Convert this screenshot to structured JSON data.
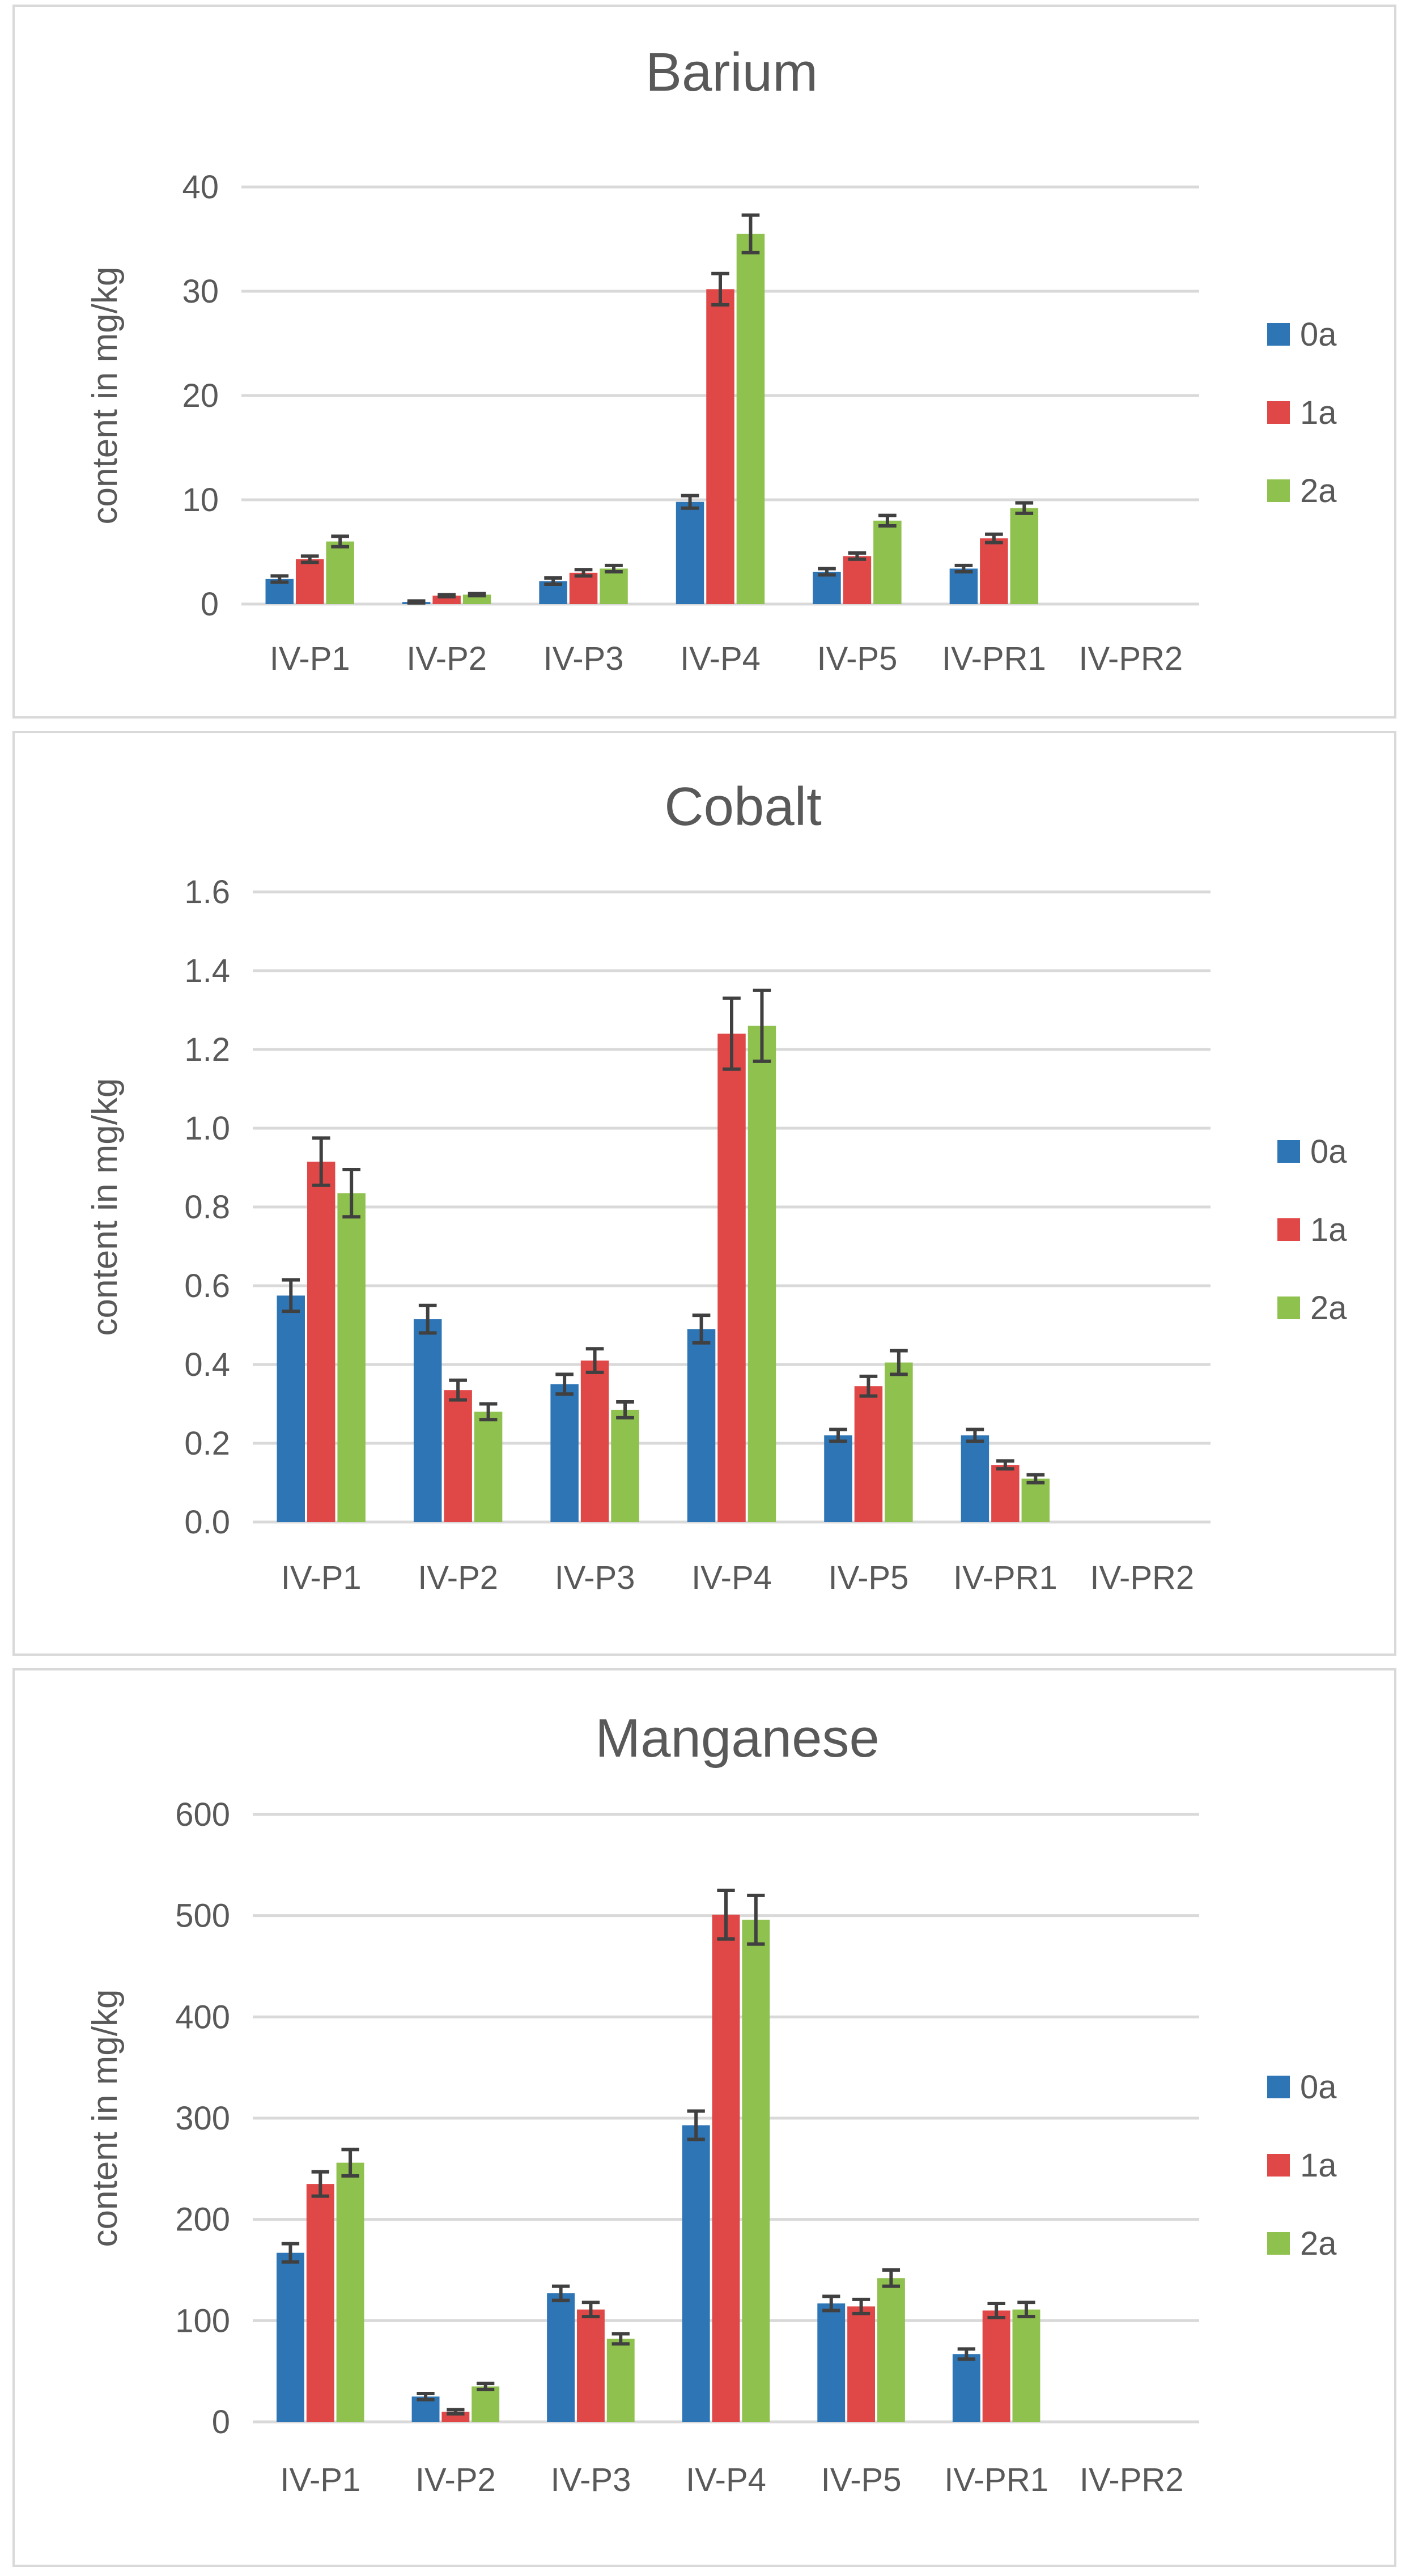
{
  "chart_data": [
    {
      "type": "bar",
      "title": "Barium",
      "xlabel": "",
      "ylabel": "content in mg/kg",
      "ylim": [
        0,
        40
      ],
      "yticks": [
        "0",
        "10",
        "20",
        "30",
        "40"
      ],
      "categories": [
        "IV-P1",
        "IV-P2",
        "IV-P3",
        "IV-P4",
        "IV-P5",
        "IV-PR1",
        "IV-PR2"
      ],
      "series": [
        {
          "name": "0a",
          "color": "#2e75b6",
          "values": [
            2.4,
            0.2,
            2.2,
            9.8,
            3.1,
            3.4,
            0
          ],
          "errors": [
            0.3,
            0.1,
            0.3,
            0.6,
            0.3,
            0.3,
            0
          ]
        },
        {
          "name": "1a",
          "color": "#e04848",
          "values": [
            4.3,
            0.8,
            3.0,
            30.2,
            4.6,
            6.3,
            0
          ],
          "errors": [
            0.3,
            0.1,
            0.3,
            1.5,
            0.3,
            0.4,
            0
          ]
        },
        {
          "name": "2a",
          "color": "#8fc14e",
          "values": [
            6.0,
            0.9,
            3.4,
            35.5,
            8.0,
            9.2,
            0
          ],
          "errors": [
            0.5,
            0.1,
            0.3,
            1.8,
            0.5,
            0.5,
            0
          ]
        }
      ]
    },
    {
      "type": "bar",
      "title": "Cobalt",
      "xlabel": "",
      "ylabel": "content in mg/kg",
      "ylim": [
        0,
        1.6
      ],
      "yticks": [
        "0.0",
        "0.2",
        "0.4",
        "0.6",
        "0.8",
        "1.0",
        "1.2",
        "1.4",
        "1.6"
      ],
      "categories": [
        "IV-P1",
        "IV-P2",
        "IV-P3",
        "IV-P4",
        "IV-P5",
        "IV-PR1",
        "IV-PR2"
      ],
      "series": [
        {
          "name": "0a",
          "color": "#2e75b6",
          "values": [
            0.575,
            0.515,
            0.35,
            0.49,
            0.22,
            0.22,
            0
          ],
          "errors": [
            0.04,
            0.035,
            0.025,
            0.035,
            0.015,
            0.015,
            0
          ]
        },
        {
          "name": "1a",
          "color": "#e04848",
          "values": [
            0.915,
            0.335,
            0.41,
            1.24,
            0.345,
            0.145,
            0
          ],
          "errors": [
            0.06,
            0.025,
            0.03,
            0.09,
            0.025,
            0.01,
            0
          ]
        },
        {
          "name": "2a",
          "color": "#8fc14e",
          "values": [
            0.835,
            0.28,
            0.285,
            1.26,
            0.405,
            0.11,
            0
          ],
          "errors": [
            0.06,
            0.02,
            0.02,
            0.09,
            0.03,
            0.01,
            0
          ]
        }
      ]
    },
    {
      "type": "bar",
      "title": "Manganese",
      "xlabel": "",
      "ylabel": "content in mg/kg",
      "ylim": [
        0,
        600
      ],
      "yticks": [
        "0",
        "100",
        "200",
        "300",
        "400",
        "500",
        "600"
      ],
      "categories": [
        "IV-P1",
        "IV-P2",
        "IV-P3",
        "IV-P4",
        "IV-P5",
        "IV-PR1",
        "IV-PR2"
      ],
      "series": [
        {
          "name": "0a",
          "color": "#2e75b6",
          "values": [
            167,
            25,
            127,
            293,
            117,
            67,
            0
          ],
          "errors": [
            9,
            3,
            7,
            14,
            7,
            5,
            0
          ]
        },
        {
          "name": "1a",
          "color": "#e04848",
          "values": [
            235,
            10,
            111,
            501,
            114,
            110,
            0
          ],
          "errors": [
            12,
            2,
            7,
            24,
            7,
            7,
            0
          ]
        },
        {
          "name": "2a",
          "color": "#8fc14e",
          "values": [
            256,
            35,
            82,
            496,
            142,
            111,
            0
          ],
          "errors": [
            13,
            3,
            5,
            24,
            8,
            7,
            0
          ]
        }
      ]
    }
  ]
}
